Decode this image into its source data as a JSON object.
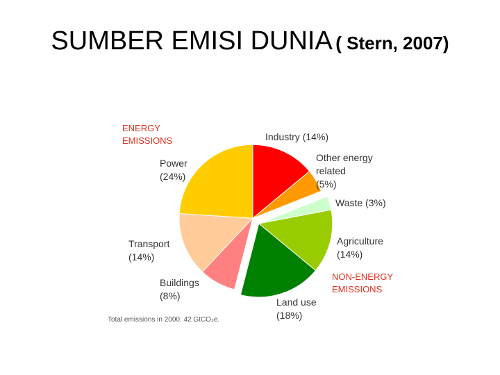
{
  "chart_data": {
    "type": "pie",
    "title": "SUMBER EMISI DUNIA",
    "subtitle": "( Stern, 2007)",
    "categories": [
      "Industry",
      "Other energy related",
      "Waste",
      "Agriculture",
      "Land use",
      "Buildings",
      "Transport",
      "Power"
    ],
    "values": [
      14,
      5,
      3,
      14,
      18,
      8,
      14,
      24
    ],
    "value_labels": [
      "(14%)",
      "(5%)",
      "(3%)",
      "(14%)",
      "(18%)",
      "(8%)",
      "(14%)",
      "(24%)"
    ],
    "colors": [
      "#ff0000",
      "#ff9900",
      "#ccffcc",
      "#99cc00",
      "#008000",
      "#ff8080",
      "#ffcc99",
      "#ffcc00"
    ],
    "annotations": [
      "ENERGY EMISSIONS",
      "NON-ENERGY EMISSIONS",
      "Total emissions in 2000: 42 GtCO₂e."
    ]
  }
}
